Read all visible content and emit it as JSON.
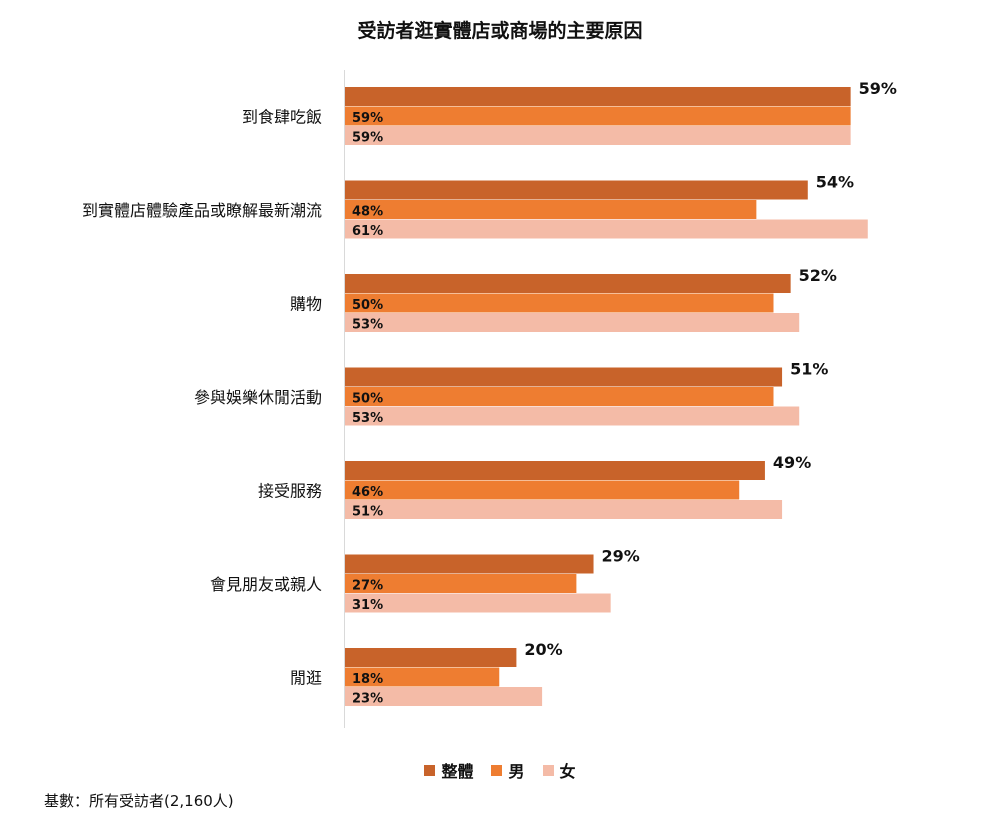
{
  "title": "受訪者逛實體店或商場的主要原因",
  "footnote": "基數：所有受訪者(2,160人)",
  "colors": {
    "overall": "#c8632a",
    "male": "#ee7d31",
    "female": "#f4bba7",
    "axis": "#d9d9d9"
  },
  "chart_data": {
    "type": "bar",
    "orientation": "horizontal",
    "title": "受訪者逛實體店或商場的主要原因",
    "categories": [
      "到食肆吃飯",
      "到實體店體驗產品或瞭解最新潮流",
      "購物",
      "參與娛樂休閒活動",
      "接受服務",
      "會見朋友或親人",
      "閒逛"
    ],
    "series": [
      {
        "name": "整體",
        "values": [
          59,
          54,
          52,
          51,
          49,
          29,
          20
        ]
      },
      {
        "name": "男",
        "values": [
          59,
          48,
          50,
          50,
          46,
          27,
          18
        ]
      },
      {
        "name": "女",
        "values": [
          59,
          61,
          53,
          53,
          51,
          31,
          23
        ]
      }
    ],
    "value_suffix": "%",
    "xlim": [
      0,
      70
    ],
    "grid": false,
    "legend_position": "bottom"
  }
}
